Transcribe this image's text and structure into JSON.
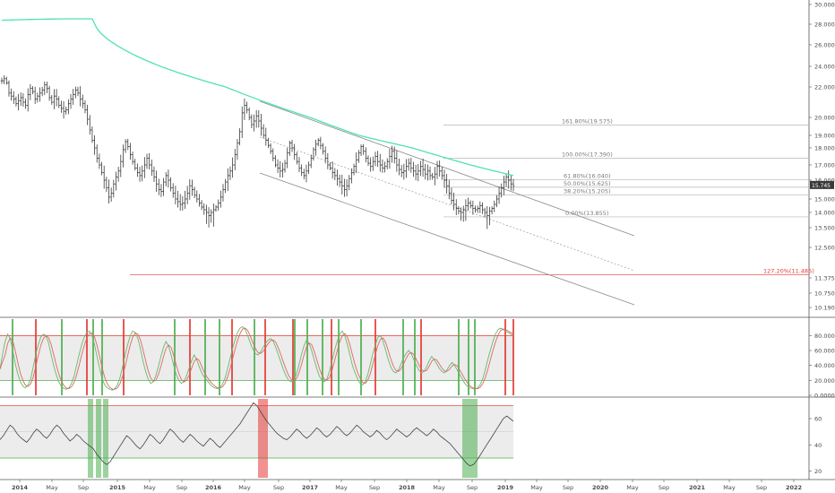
{
  "colors": {
    "bars": "#3a3a3a",
    "ma": "#4ee3b0",
    "channel": "#8a8a8a",
    "fib": "#b5b5b5",
    "red": "#e53935",
    "green": "#4caf50",
    "stoch_k": "#66bb6a",
    "stoch_d": "#e06666",
    "band": "#ececec"
  },
  "chart_data": [
    {
      "type": "ohlc",
      "panel": "price",
      "y_axis_ticks": [
        "30.000",
        "28.000",
        "26.000",
        "24.000",
        "22.000",
        "20.000",
        "19.000",
        "18.000",
        "17.000",
        "16.000",
        "15.000",
        "14.000",
        "13.500",
        "12.500",
        "11.375",
        "10.750",
        "10.190"
      ],
      "last_price_tag": "15.745",
      "fib_levels": [
        {
          "label": "161.80%(19.575)",
          "value": 19.575
        },
        {
          "label": "100.00%(17.390)",
          "value": 17.39
        },
        {
          "label": "61.80%(16.040)",
          "value": 16.04
        },
        {
          "label": "50.00%(15.625)",
          "value": 15.625
        },
        {
          "label": "38.20%(15.205)",
          "value": 15.205
        },
        {
          "label": "0.00%(13.855)",
          "value": 13.855
        },
        {
          "label": "127.20%(11.485)",
          "value": 11.485
        }
      ],
      "weekly_closes": [
        22.6,
        22.8,
        22.4,
        21.6,
        21.4,
        21.2,
        20.9,
        21.1,
        21.3,
        21.0,
        20.8,
        21.5,
        21.9,
        21.7,
        21.2,
        21.4,
        21.6,
        21.8,
        22.2,
        21.9,
        21.3,
        21.0,
        21.4,
        21.2,
        20.8,
        20.6,
        20.4,
        20.5,
        20.9,
        21.2,
        21.5,
        21.8,
        21.6,
        21.2,
        20.9,
        20.5,
        19.9,
        19.3,
        18.6,
        18.0,
        17.4,
        17.0,
        16.5,
        16.0,
        15.6,
        15.1,
        15.3,
        15.8,
        16.2,
        16.6,
        17.2,
        17.9,
        18.5,
        18.1,
        17.6,
        17.2,
        16.8,
        16.5,
        16.3,
        16.6,
        17.0,
        17.4,
        17.0,
        16.6,
        16.2,
        15.8,
        15.5,
        15.4,
        15.9,
        16.3,
        16.0,
        15.6,
        15.3,
        15.0,
        14.8,
        14.6,
        14.7,
        15.0,
        15.3,
        15.7,
        15.5,
        15.2,
        15.0,
        14.7,
        14.4,
        14.2,
        14.0,
        13.9,
        14.0,
        14.2,
        14.4,
        14.7,
        15.1,
        15.5,
        15.9,
        16.3,
        16.6,
        17.0,
        17.6,
        18.4,
        19.2,
        20.3,
        20.8,
        20.5,
        20.0,
        19.6,
        19.8,
        20.1,
        19.8,
        19.4,
        19.0,
        18.6,
        18.2,
        17.8,
        17.4,
        17.0,
        16.8,
        16.6,
        16.7,
        17.1,
        17.7,
        18.4,
        18.0,
        17.6,
        17.2,
        16.8,
        16.5,
        16.3,
        16.6,
        17.0,
        17.4,
        17.9,
        18.3,
        18.6,
        18.2,
        17.8,
        17.4,
        17.0,
        16.8,
        16.5,
        16.3,
        16.1,
        15.9,
        15.7,
        15.5,
        15.7,
        16.1,
        16.5,
        16.9,
        17.3,
        17.7,
        18.1,
        17.8,
        17.4,
        17.1,
        16.9,
        17.2,
        17.5,
        17.2,
        17.0,
        16.8,
        16.9,
        17.2,
        17.5,
        17.8,
        17.4,
        17.0,
        16.7,
        16.5,
        16.6,
        16.9,
        17.1,
        16.8,
        16.6,
        16.4,
        16.6,
        16.9,
        16.7,
        16.4,
        16.6,
        16.3,
        16.2,
        16.4,
        16.9,
        16.6,
        16.3,
        16.0,
        15.7,
        15.3,
        14.9,
        14.6,
        14.3,
        14.1,
        14.0,
        14.2,
        14.5,
        14.7,
        14.5,
        14.3,
        14.2,
        14.3,
        14.5,
        14.2,
        14.0,
        13.9,
        14.1,
        14.3,
        14.6,
        15.0,
        15.3,
        15.6,
        15.9,
        16.2,
        16.0,
        15.8,
        15.7
      ]
    },
    {
      "type": "line",
      "panel": "stochastic",
      "y_axis_ticks": [
        "80.0000",
        "60.0000",
        "40.0000",
        "20.0000",
        "0.0000"
      ],
      "band": [
        20,
        80
      ],
      "series": [
        {
          "values_k": [
            35,
            55,
            72,
            82,
            76,
            60,
            42,
            28,
            18,
            12,
            10,
            14,
            22,
            38,
            55,
            68,
            78,
            82,
            80,
            70,
            55,
            40,
            28,
            18,
            12,
            9,
            8,
            10,
            16,
            26,
            40,
            55,
            68,
            78,
            84,
            86,
            80,
            68,
            52,
            36,
            22,
            14,
            10,
            8,
            7,
            9,
            14,
            24,
            38,
            54,
            68,
            80,
            86,
            84,
            76,
            62,
            46,
            32,
            22,
            16,
            18,
            26,
            38,
            52,
            64,
            72,
            66,
            54,
            40,
            28,
            20,
            16,
            18,
            26,
            36,
            46,
            54,
            48,
            38,
            30,
            24,
            20,
            16,
            12,
            10,
            9,
            10,
            14,
            22,
            34,
            48,
            62,
            74,
            84,
            90,
            92,
            88,
            80,
            70,
            62,
            56,
            54,
            58,
            64,
            70,
            74,
            76,
            72,
            64,
            54,
            44,
            34,
            26,
            20,
            18,
            20,
            28,
            40,
            54,
            66,
            74,
            70,
            60,
            48,
            36,
            26,
            20,
            18,
            22,
            32,
            46,
            60,
            72,
            82,
            86,
            80,
            68,
            54,
            40,
            30,
            22,
            16,
            14,
            18,
            28,
            42,
            56,
            68,
            78,
            80,
            72,
            60,
            48,
            38,
            32,
            30,
            34,
            42,
            50,
            56,
            60,
            56,
            48,
            40,
            34,
            30,
            32,
            38,
            46,
            52,
            48,
            42,
            36,
            32,
            30,
            34,
            40,
            44,
            40,
            34,
            28,
            22,
            16,
            12,
            10,
            9,
            8,
            10,
            14,
            22,
            34,
            48,
            60,
            72,
            82,
            88,
            90,
            88,
            86,
            84,
            82,
            80
          ]
        }
      ]
    },
    {
      "type": "line",
      "panel": "rsi",
      "y_axis_ticks": [
        "60",
        "40",
        "20"
      ],
      "band": [
        30,
        70
      ],
      "series": [
        {
          "values": [
            44,
            47,
            51,
            55,
            53,
            49,
            46,
            44,
            42,
            45,
            49,
            52,
            50,
            47,
            45,
            48,
            52,
            55,
            53,
            49,
            46,
            43,
            45,
            48,
            46,
            43,
            41,
            39,
            37,
            33,
            30,
            27,
            25,
            27,
            31,
            35,
            39,
            43,
            47,
            45,
            42,
            39,
            37,
            40,
            44,
            48,
            46,
            43,
            41,
            44,
            48,
            52,
            50,
            47,
            44,
            42,
            45,
            48,
            46,
            43,
            41,
            39,
            42,
            45,
            43,
            40,
            38,
            41,
            44,
            47,
            50,
            53,
            56,
            60,
            64,
            68,
            72,
            70,
            66,
            62,
            58,
            55,
            52,
            49,
            47,
            45,
            44,
            46,
            49,
            52,
            50,
            47,
            45,
            47,
            50,
            53,
            51,
            48,
            46,
            48,
            51,
            54,
            52,
            49,
            47,
            49,
            52,
            55,
            53,
            50,
            48,
            46,
            48,
            51,
            49,
            46,
            44,
            46,
            49,
            52,
            50,
            48,
            46,
            48,
            51,
            53,
            51,
            49,
            47,
            49,
            52,
            50,
            47,
            45,
            43,
            41,
            38,
            35,
            32,
            29,
            26,
            24,
            25,
            28,
            32,
            36,
            40,
            44,
            48,
            52,
            56,
            60,
            62,
            60,
            58
          ]
        }
      ]
    }
  ],
  "x_axis": {
    "labels": [
      "2014",
      "May",
      "Sep",
      "2015",
      "May",
      "Sep",
      "2016",
      "May",
      "Sep",
      "2017",
      "May",
      "Sep",
      "2018",
      "May",
      "Sep",
      "2019",
      "May",
      "Sep",
      "2020",
      "May",
      "Sep",
      "2021",
      "May",
      "Sep",
      "2022"
    ]
  }
}
